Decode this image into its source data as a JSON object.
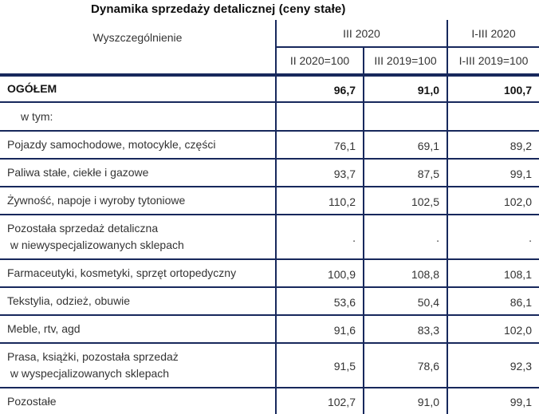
{
  "colors": {
    "border_navy": "#17285c",
    "text": "#333333",
    "title_text": "#0d0d0d"
  },
  "chart_data": {
    "type": "table",
    "title": "Dynamika sprzedaży detalicznej (ceny stałe)",
    "stub_header": "Wyszczególnienie",
    "col_groups": [
      {
        "label": "III 2020",
        "span": 2
      },
      {
        "label": "I-III 2020",
        "span": 1
      }
    ],
    "columns": [
      "II 2020=100",
      "III 2019=100",
      "I-III 2019=100"
    ],
    "rows": [
      {
        "label": "OGÓŁEM",
        "variant": "total",
        "values": [
          "96,7",
          "91,0",
          "100,7"
        ]
      },
      {
        "label": "w tym:",
        "variant": "subhead",
        "values": [
          "",
          "",
          ""
        ]
      },
      {
        "label": "Pojazdy samochodowe, motocykle, części",
        "values": [
          "76,1",
          "69,1",
          "89,2"
        ]
      },
      {
        "label": "Paliwa stałe, ciekłe i gazowe",
        "values": [
          "93,7",
          "87,5",
          "99,1"
        ]
      },
      {
        "label": "Żywność, napoje i wyroby tytoniowe",
        "values": [
          "110,2",
          "102,5",
          "102,0"
        ]
      },
      {
        "label": "Pozostała sprzedaż detaliczna\n w niewyspecjalizowanych sklepach",
        "variant": "twoline",
        "values": [
          ".",
          ".",
          "."
        ]
      },
      {
        "label": "Farmaceutyki, kosmetyki, sprzęt ortopedyczny",
        "values": [
          "100,9",
          "108,8",
          "108,1"
        ]
      },
      {
        "label": "Tekstylia, odzież, obuwie",
        "values": [
          "53,6",
          "50,4",
          "86,1"
        ]
      },
      {
        "label": "Meble, rtv, agd",
        "values": [
          "91,6",
          "83,3",
          "102,0"
        ]
      },
      {
        "label": "Prasa, książki, pozostała sprzedaż\n w wyspecjalizowanych sklepach",
        "variant": "twoline",
        "values": [
          "91,5",
          "78,6",
          "92,3"
        ]
      },
      {
        "label": "Pozostałe",
        "variant": "last",
        "values": [
          "102,7",
          "91,0",
          "99,1"
        ]
      }
    ]
  }
}
